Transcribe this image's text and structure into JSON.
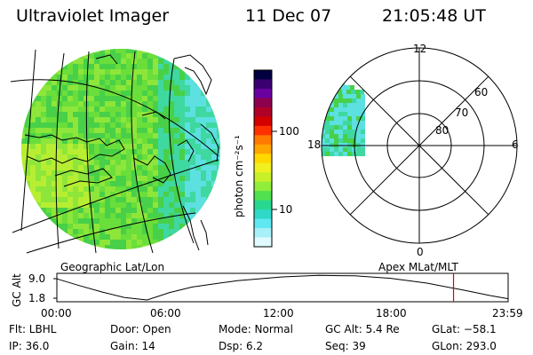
{
  "header": {
    "instrument": "Ultraviolet Imager",
    "date": "11 Dec 07",
    "time": "21:05:48 UT"
  },
  "colorbar": {
    "unit_label": "photon cm⁻²s⁻¹",
    "ticks": [
      "100",
      "10"
    ],
    "colors": [
      "#000040",
      "#3a0070",
      "#6a00a0",
      "#8c004e",
      "#b00028",
      "#d40000",
      "#ff3000",
      "#ff7a00",
      "#ffa500",
      "#ffd800",
      "#f0f020",
      "#c8f028",
      "#90ee3a",
      "#50e050",
      "#28d890",
      "#30d8c8",
      "#60e8f0",
      "#a8f0f8",
      "#e0fbff"
    ]
  },
  "map": {
    "label": "Geographic Lat/Lon",
    "emission_colors": [
      "#48d048",
      "#6ade3a",
      "#8ee63a",
      "#b8ee32",
      "#3fd8a0",
      "#5ce0e0"
    ]
  },
  "polar": {
    "label": "Apex MLat/MLT",
    "mlt_labels": {
      "top": "12",
      "left": "18",
      "right": "6",
      "bottom": "0"
    },
    "lat_labels": [
      "60",
      "70",
      "80"
    ]
  },
  "altitude_plot": {
    "ylabel": "GC Alt",
    "yticks": [
      "9.0",
      "1.8"
    ],
    "xticks": [
      "00:00",
      "06:00",
      "12:00",
      "18:00",
      "23:59"
    ],
    "current_marker_color": "#e00000",
    "current_time_fraction": 0.879
  },
  "info": {
    "flt": "Flt: LBHL",
    "ip": "IP: 36.0",
    "door": "Door: Open",
    "gain": "Gain: 14",
    "mode": "Mode: Normal",
    "dsp": "Dsp:      6.2",
    "gc_alt": "GC Alt: 5.4 Re",
    "seq": "Seq: 39",
    "glat": "GLat: −58.1",
    "glon": "GLon: 293.0"
  }
}
